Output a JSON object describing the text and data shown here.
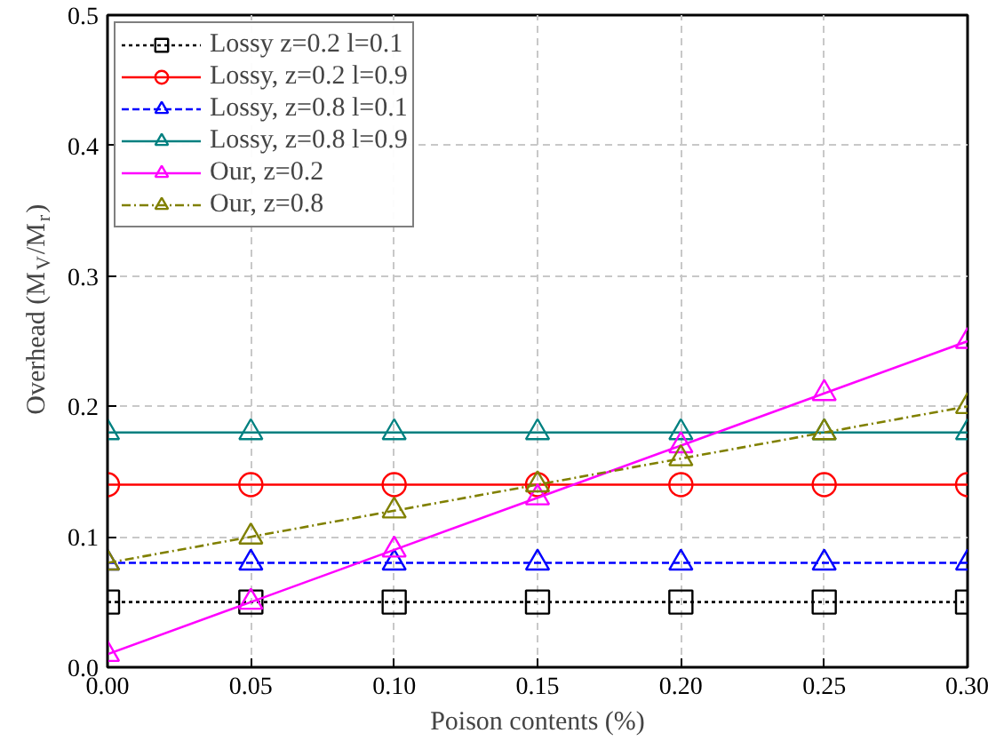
{
  "chart_data": {
    "type": "line",
    "xlabel": "Poison contents (%)",
    "ylabel": "Overhead (M$_{V}$/M$_{r}$)",
    "x": [
      0.0,
      0.05,
      0.1,
      0.15,
      0.2,
      0.25,
      0.3
    ],
    "xlim": [
      0.0,
      0.3
    ],
    "ylim": [
      0.0,
      0.5
    ],
    "xticks": [
      {
        "value": 0.0,
        "label": "0.00"
      },
      0.05,
      {
        "value": 0.1,
        "label": "0.10"
      },
      0.15,
      {
        "value": 0.2,
        "label": "0.20"
      },
      0.25,
      {
        "value": 0.3,
        "label": "0.30"
      }
    ],
    "yticks": [
      {
        "value": 0.0,
        "label": "0.0"
      },
      0.1,
      0.2,
      0.3,
      0.4,
      0.5
    ],
    "grid": true,
    "legend": "top left",
    "series": [
      {
        "name": "Lossy z=0.2 l=0.1",
        "color": "#000000",
        "marker": "square",
        "line_style": "dotted",
        "values": [
          0.05,
          0.05,
          0.05,
          0.05,
          0.05,
          0.05,
          0.05
        ]
      },
      {
        "name": "Lossy, z=0.2 l=0.9",
        "color": "#ff0000",
        "marker": "circle",
        "line_style": "solid",
        "values": [
          0.14,
          0.14,
          0.14,
          0.14,
          0.14,
          0.14,
          0.14
        ]
      },
      {
        "name": "Lossy, z=0.8 l=0.1",
        "color": "#0000ff",
        "marker": "triangle",
        "line_style": "dashed",
        "values": [
          0.08,
          0.08,
          0.08,
          0.08,
          0.08,
          0.08,
          0.08
        ]
      },
      {
        "name": "Lossy, z=0.8 l=0.9",
        "color": "#008080",
        "marker": "triangle",
        "line_style": "solid",
        "values": [
          0.18,
          0.18,
          0.18,
          0.18,
          0.18,
          0.18,
          0.18
        ]
      },
      {
        "name": "Our, z=0.2",
        "color": "#ff00ff",
        "marker": "triangle",
        "line_style": "solid",
        "values": [
          0.01,
          0.05,
          0.09,
          0.13,
          0.17,
          0.21,
          0.25
        ]
      },
      {
        "name": "Our, z=0.8",
        "color": "#808000",
        "marker": "triangle",
        "line_style": "dashdot",
        "values": [
          0.08,
          0.1,
          0.12,
          0.14,
          0.16,
          0.18,
          0.2
        ]
      }
    ]
  }
}
